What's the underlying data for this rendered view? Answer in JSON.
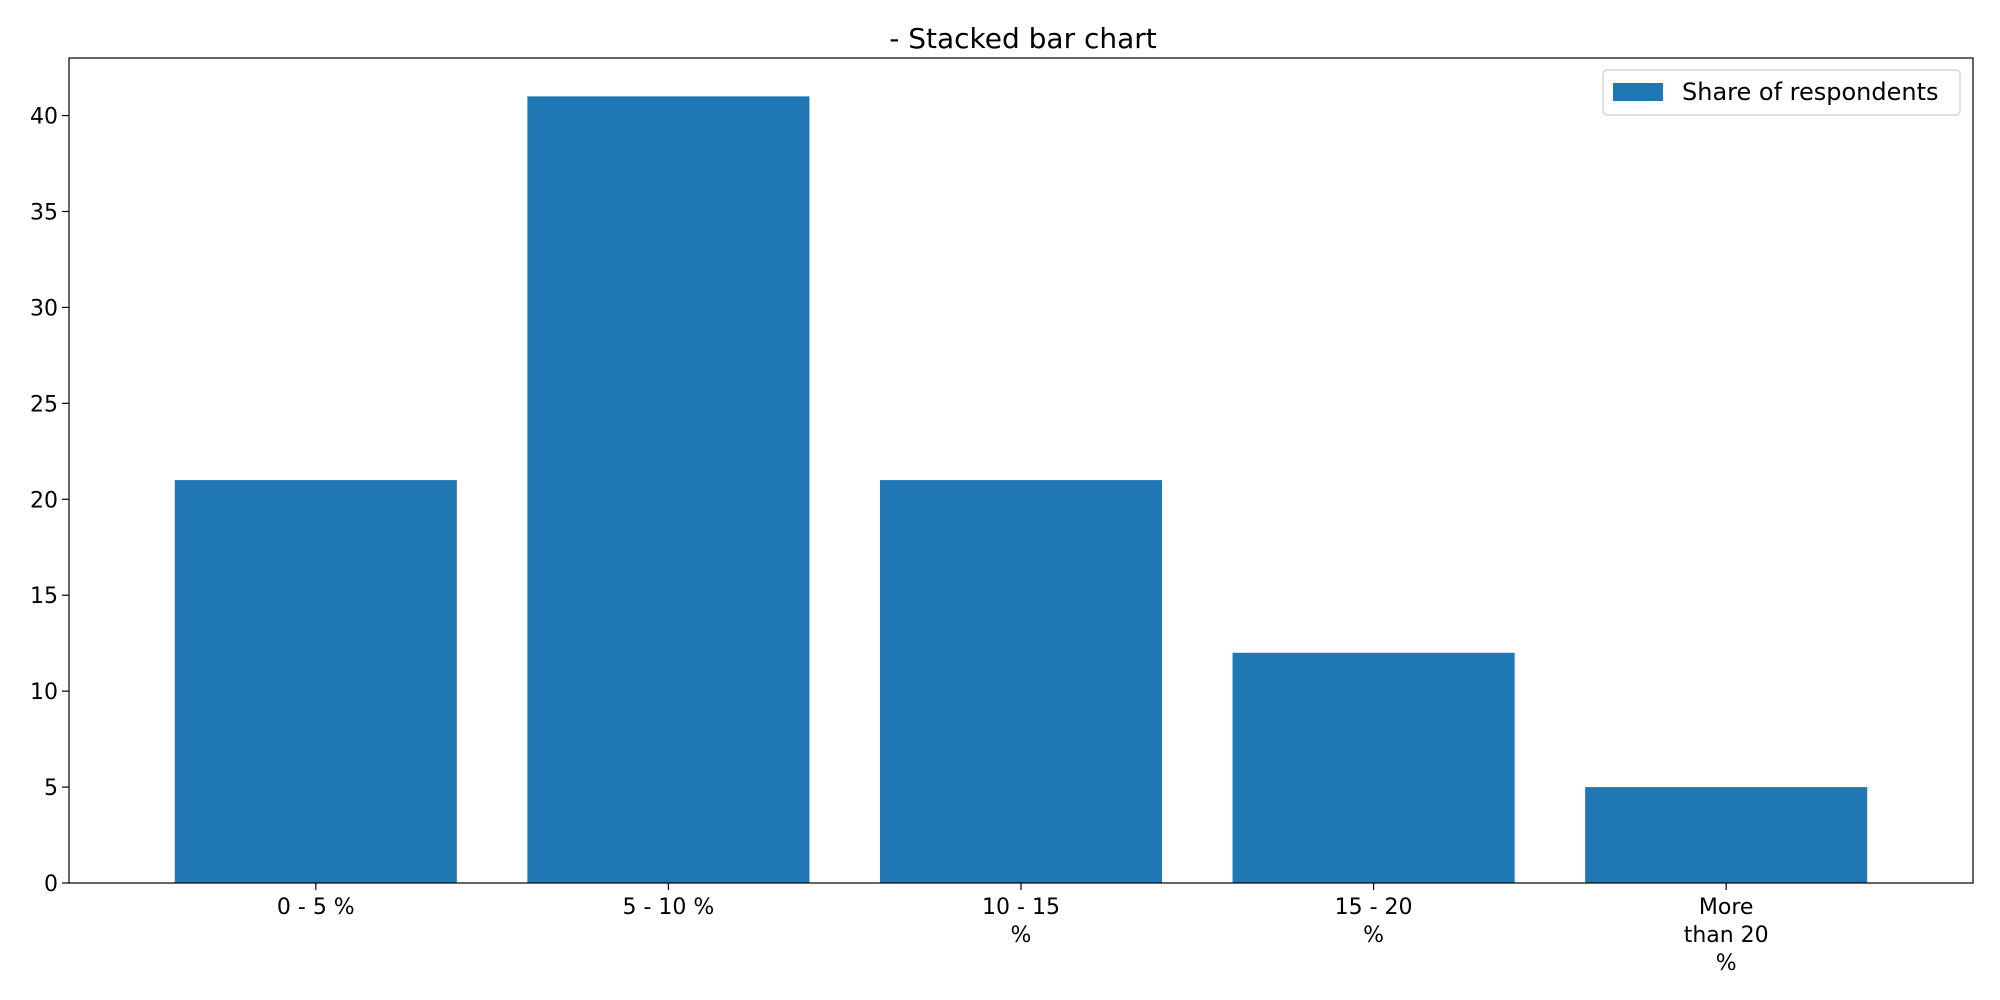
{
  "chart_data": {
    "type": "bar",
    "title": "- Stacked bar chart",
    "xlabel": "",
    "ylabel": "",
    "categories": [
      "0 - 5 %",
      "5 - 10 %",
      "10 - 15 %",
      "15 - 20 %",
      "More than 20 %"
    ],
    "category_label_lines": [
      [
        "0 - 5 %"
      ],
      [
        "5 - 10 %"
      ],
      [
        "10 - 15",
        "%"
      ],
      [
        "15 - 20",
        "%"
      ],
      [
        "More",
        "than 20",
        "%"
      ]
    ],
    "series": [
      {
        "name": "Share of respondents",
        "values": [
          21,
          41,
          21,
          12,
          5
        ],
        "color": "#1f77b4"
      }
    ],
    "ylim": [
      0,
      43
    ],
    "yticks": [
      0,
      5,
      10,
      15,
      20,
      25,
      30,
      35,
      40
    ],
    "grid": false,
    "legend": {
      "position": "top-right"
    }
  }
}
